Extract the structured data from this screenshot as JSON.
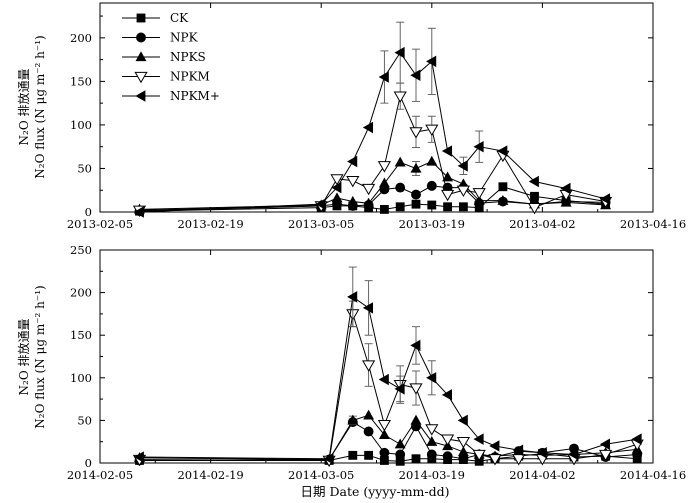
{
  "chart_data": [
    {
      "type": "line",
      "title": "",
      "ylabel_zh": "N₂O 排放通量",
      "ylabel_en": "N₂O flux (N μg m⁻² h⁻¹)",
      "xlim": [
        "2013-02-05",
        "2013-04-16"
      ],
      "ylim": [
        0,
        240
      ],
      "xticks": [
        "2013-02-05",
        "2013-02-19",
        "2013-03-05",
        "2013-03-19",
        "2013-04-02",
        "2013-04-16"
      ],
      "yticks": [
        0,
        50,
        100,
        150,
        200
      ],
      "legend": [
        "CK",
        "NPK",
        "NPKS",
        "NPKM",
        "NPKM+"
      ],
      "legend_position": "top-left",
      "series": [
        {
          "name": "CK",
          "marker": "square",
          "x": [
            "2013-02-10",
            "2013-03-05",
            "2013-03-07",
            "2013-03-09",
            "2013-03-11",
            "2013-03-13",
            "2013-03-15",
            "2013-03-17",
            "2013-03-19",
            "2013-03-21",
            "2013-03-23",
            "2013-03-25",
            "2013-03-28",
            "2013-04-01",
            "2013-04-05",
            "2013-04-10"
          ],
          "values": [
            1,
            5,
            7,
            7,
            5,
            3,
            6,
            9,
            8,
            6,
            6,
            5,
            29,
            18,
            13,
            9
          ],
          "errors": [
            0,
            0,
            0,
            0,
            0,
            0,
            0,
            0,
            0,
            0,
            0,
            0,
            0,
            0,
            0,
            0
          ]
        },
        {
          "name": "NPK",
          "marker": "circle",
          "x": [
            "2013-02-10",
            "2013-03-05",
            "2013-03-07",
            "2013-03-09",
            "2013-03-11",
            "2013-03-13",
            "2013-03-15",
            "2013-03-17",
            "2013-03-19",
            "2013-03-21",
            "2013-03-23",
            "2013-03-25",
            "2013-03-28",
            "2013-04-01",
            "2013-04-05",
            "2013-04-10"
          ],
          "values": [
            1,
            7,
            9,
            7,
            8,
            26,
            28,
            20,
            30,
            28,
            28,
            10,
            12,
            9,
            12,
            11
          ],
          "errors": [
            0,
            0,
            0,
            0,
            0,
            0,
            0,
            0,
            0,
            0,
            0,
            0,
            0,
            0,
            0,
            0
          ]
        },
        {
          "name": "NPKS",
          "marker": "triangle-up",
          "x": [
            "2013-02-10",
            "2013-03-05",
            "2013-03-07",
            "2013-03-09",
            "2013-03-11",
            "2013-03-13",
            "2013-03-15",
            "2013-03-17",
            "2013-03-19",
            "2013-03-21",
            "2013-03-23",
            "2013-03-25",
            "2013-03-28",
            "2013-04-01",
            "2013-04-05",
            "2013-04-10"
          ],
          "values": [
            3,
            8,
            16,
            12,
            10,
            33,
            57,
            50,
            58,
            40,
            32,
            13,
            13,
            9,
            11,
            8
          ],
          "errors": [
            0,
            0,
            0,
            0,
            0,
            0,
            0,
            8,
            0,
            0,
            0,
            0,
            0,
            0,
            0,
            0
          ]
        },
        {
          "name": "NPKM",
          "marker": "triangle-down-open",
          "x": [
            "2013-02-10",
            "2013-03-05",
            "2013-03-07",
            "2013-03-09",
            "2013-03-11",
            "2013-03-13",
            "2013-03-15",
            "2013-03-17",
            "2013-03-19",
            "2013-03-21",
            "2013-03-23",
            "2013-03-25",
            "2013-03-28",
            "2013-04-01",
            "2013-04-05",
            "2013-04-10"
          ],
          "values": [
            2,
            7,
            38,
            36,
            27,
            53,
            133,
            92,
            95,
            20,
            25,
            22,
            65,
            5,
            20,
            12
          ],
          "errors": [
            0,
            0,
            0,
            0,
            0,
            0,
            15,
            18,
            15,
            0,
            0,
            0,
            0,
            0,
            0,
            0
          ]
        },
        {
          "name": "NPKM+",
          "marker": "triangle-left",
          "x": [
            "2013-02-10",
            "2013-03-05",
            "2013-03-07",
            "2013-03-09",
            "2013-03-11",
            "2013-03-13",
            "2013-03-15",
            "2013-03-17",
            "2013-03-19",
            "2013-03-21",
            "2013-03-23",
            "2013-03-25",
            "2013-03-28",
            "2013-04-01",
            "2013-04-05",
            "2013-04-10"
          ],
          "values": [
            0,
            9,
            28,
            58,
            97,
            155,
            183,
            157,
            173,
            70,
            53,
            75,
            70,
            35,
            27,
            15
          ],
          "errors": [
            0,
            0,
            0,
            0,
            0,
            30,
            35,
            30,
            38,
            0,
            10,
            18,
            0,
            0,
            0,
            0
          ]
        }
      ]
    },
    {
      "type": "line",
      "title": "",
      "ylabel_zh": "N₂O 排放通量",
      "ylabel_en": "N₂O flux (N μg m⁻² h⁻¹)",
      "xlabel": "日期 Date (yyyy-mm-dd)",
      "xlim": [
        "2014-02-05",
        "2014-04-16"
      ],
      "ylim": [
        0,
        250
      ],
      "xticks": [
        "2014-02-05",
        "2014-02-19",
        "2014-03-05",
        "2014-03-19",
        "2014-04-02",
        "2014-04-16"
      ],
      "yticks": [
        0,
        50,
        100,
        150,
        200,
        250
      ],
      "series": [
        {
          "name": "CK",
          "marker": "square",
          "x": [
            "2014-02-10",
            "2014-03-06",
            "2014-03-09",
            "2014-03-11",
            "2014-03-13",
            "2014-03-15",
            "2014-03-17",
            "2014-03-19",
            "2014-03-21",
            "2014-03-23",
            "2014-03-25",
            "2014-03-27",
            "2014-03-30",
            "2014-04-02",
            "2014-04-06",
            "2014-04-10",
            "2014-04-14"
          ],
          "values": [
            3,
            3,
            9,
            9,
            3,
            2,
            5,
            5,
            4,
            4,
            2,
            5,
            8,
            11,
            7,
            8,
            5
          ],
          "errors": [
            0,
            0,
            0,
            0,
            0,
            0,
            0,
            0,
            0,
            0,
            0,
            0,
            0,
            0,
            0,
            0,
            0
          ]
        },
        {
          "name": "NPK",
          "marker": "circle",
          "x": [
            "2014-02-10",
            "2014-03-06",
            "2014-03-09",
            "2014-03-11",
            "2014-03-13",
            "2014-03-15",
            "2014-03-17",
            "2014-03-19",
            "2014-03-21",
            "2014-03-23",
            "2014-03-25",
            "2014-03-27",
            "2014-03-30",
            "2014-04-02",
            "2014-04-06",
            "2014-04-10",
            "2014-04-14"
          ],
          "values": [
            3,
            4,
            48,
            37,
            12,
            10,
            43,
            10,
            8,
            5,
            10,
            7,
            14,
            12,
            17,
            7,
            10
          ],
          "errors": [
            0,
            0,
            0,
            0,
            0,
            0,
            0,
            0,
            0,
            0,
            0,
            0,
            0,
            0,
            0,
            0,
            0
          ]
        },
        {
          "name": "NPKS",
          "marker": "triangle-up",
          "x": [
            "2014-02-10",
            "2014-03-06",
            "2014-03-09",
            "2014-03-11",
            "2014-03-13",
            "2014-03-15",
            "2014-03-17",
            "2014-03-19",
            "2014-03-21",
            "2014-03-23",
            "2014-03-25",
            "2014-03-27",
            "2014-03-30",
            "2014-04-02",
            "2014-04-06",
            "2014-04-10",
            "2014-04-14"
          ],
          "values": [
            6,
            4,
            50,
            56,
            33,
            22,
            50,
            25,
            20,
            13,
            10,
            8,
            10,
            9,
            10,
            12,
            16
          ],
          "errors": [
            0,
            0,
            5,
            0,
            0,
            0,
            0,
            0,
            0,
            0,
            0,
            0,
            0,
            0,
            0,
            0,
            0
          ]
        },
        {
          "name": "NPKM",
          "marker": "triangle-down-open",
          "x": [
            "2014-02-10",
            "2014-03-06",
            "2014-03-09",
            "2014-03-11",
            "2014-03-13",
            "2014-03-15",
            "2014-03-17",
            "2014-03-19",
            "2014-03-21",
            "2014-03-23",
            "2014-03-25",
            "2014-03-27",
            "2014-03-30",
            "2014-04-02",
            "2014-04-06",
            "2014-04-10",
            "2014-04-14"
          ],
          "values": [
            4,
            3,
            175,
            115,
            45,
            92,
            88,
            40,
            28,
            25,
            10,
            5,
            5,
            5,
            5,
            10,
            22
          ],
          "errors": [
            0,
            0,
            15,
            25,
            0,
            22,
            20,
            0,
            0,
            0,
            0,
            0,
            0,
            0,
            0,
            0,
            0
          ]
        },
        {
          "name": "NPKM+",
          "marker": "triangle-left",
          "x": [
            "2014-02-10",
            "2014-03-06",
            "2014-03-09",
            "2014-03-11",
            "2014-03-13",
            "2014-03-15",
            "2014-03-17",
            "2014-03-19",
            "2014-03-21",
            "2014-03-23",
            "2014-03-25",
            "2014-03-27",
            "2014-03-30",
            "2014-04-02",
            "2014-04-06",
            "2014-04-10",
            "2014-04-14"
          ],
          "values": [
            7,
            5,
            195,
            182,
            98,
            87,
            138,
            100,
            80,
            50,
            28,
            20,
            15,
            12,
            10,
            22,
            28
          ],
          "errors": [
            0,
            0,
            35,
            32,
            0,
            15,
            22,
            20,
            0,
            0,
            0,
            0,
            0,
            0,
            0,
            0,
            0
          ]
        }
      ]
    }
  ]
}
